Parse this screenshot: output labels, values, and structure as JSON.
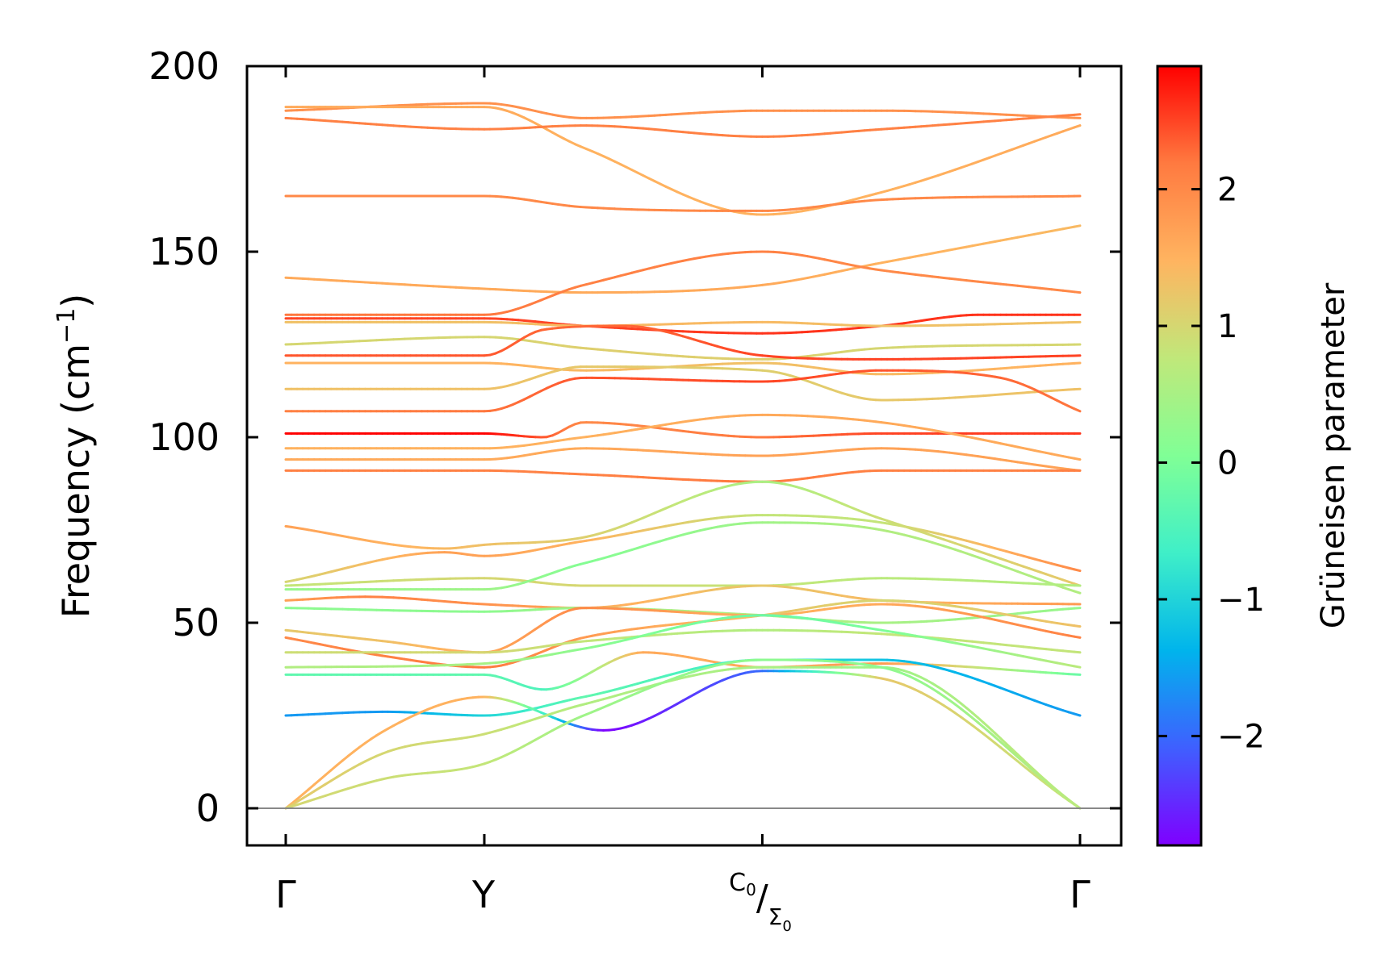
{
  "chart_data": {
    "type": "line",
    "ylabel_main": "Frequency (cm",
    "ylabel_sup": "−1",
    "ylabel_close": ")",
    "ylim": [
      -10,
      200
    ],
    "yticks": [
      0,
      50,
      100,
      150,
      200
    ],
    "ytick_labels": [
      "0",
      "50",
      "100",
      "150",
      "200"
    ],
    "xticks": [
      0,
      1,
      2.4,
      4
    ],
    "xtick_labels": {
      "gamma_start": "Γ",
      "y": "Y",
      "c0_sup": "C",
      "c0_sub": "0",
      "slash": "/",
      "sigma0": "Σ",
      "sigma0_sub": "0",
      "gamma_end": "Γ"
    },
    "colorbar": {
      "label": "Grüneisen parameter",
      "range": [
        -2.8,
        2.9
      ],
      "ticks": [
        2,
        1,
        0,
        -1,
        -2
      ],
      "tick_labels": [
        "2",
        "1",
        "0",
        "−1",
        "−2"
      ],
      "colormap": [
        "#7f00ff",
        "#3f5fff",
        "#00b4ec",
        "#3fefc8",
        "#80ff96",
        "#c0e87a",
        "#ffb460",
        "#ff7a40",
        "#ff0000"
      ]
    },
    "series": [
      {
        "name": "band-01",
        "x": [
          0,
          1,
          1.5,
          2.4,
          3.0,
          4
        ],
        "y": [
          188,
          190,
          186,
          188,
          188,
          186
        ],
        "gamma": [
          1.9,
          1.9,
          1.9,
          1.9,
          1.9,
          1.9
        ]
      },
      {
        "name": "band-02",
        "x": [
          0,
          0.5,
          1,
          1.5,
          2.4,
          3.0,
          4
        ],
        "y": [
          189,
          189,
          189,
          178,
          160,
          166,
          184
        ],
        "gamma": [
          1.6,
          1.6,
          1.6,
          1.5,
          1.5,
          1.5,
          1.6
        ]
      },
      {
        "name": "band-03",
        "x": [
          0,
          1,
          1.5,
          2.4,
          3.0,
          4
        ],
        "y": [
          186,
          183,
          184,
          181,
          183,
          187
        ],
        "gamma": [
          2.1,
          2.1,
          2.1,
          2.1,
          2.1,
          2.1
        ]
      },
      {
        "name": "band-04",
        "x": [
          0,
          1,
          1.5,
          2.4,
          3.0,
          4
        ],
        "y": [
          165,
          165,
          162,
          161,
          164,
          165
        ],
        "gamma": [
          2.0,
          2.0,
          2.0,
          2.0,
          2.0,
          2.0
        ]
      },
      {
        "name": "band-05",
        "x": [
          0,
          1,
          1.5,
          2.4,
          3.0,
          4
        ],
        "y": [
          143,
          140,
          139,
          141,
          147,
          157
        ],
        "gamma": [
          1.6,
          1.6,
          1.6,
          1.6,
          1.5,
          1.4
        ]
      },
      {
        "name": "band-06",
        "x": [
          0,
          1,
          1.5,
          2.4,
          3.0,
          4
        ],
        "y": [
          133,
          133,
          141,
          150,
          145,
          139
        ],
        "gamma": [
          2.2,
          2.2,
          2.1,
          2.1,
          2.0,
          2.0
        ]
      },
      {
        "name": "band-07",
        "x": [
          0,
          1,
          1.5,
          2.4,
          3.0,
          3.5,
          4
        ],
        "y": [
          132,
          132,
          130,
          128,
          130,
          133,
          133
        ],
        "gamma": [
          2.5,
          2.5,
          2.5,
          2.6,
          2.6,
          2.6,
          2.6
        ]
      },
      {
        "name": "band-08",
        "x": [
          0,
          1,
          1.5,
          2.4,
          3.0,
          4
        ],
        "y": [
          131,
          131,
          130,
          131,
          130,
          131
        ],
        "gamma": [
          1.3,
          1.3,
          1.4,
          1.4,
          1.3,
          1.3
        ]
      },
      {
        "name": "band-09",
        "x": [
          0,
          1,
          1.5,
          2.4,
          3.0,
          4
        ],
        "y": [
          125,
          127,
          124,
          121,
          124,
          125
        ],
        "gamma": [
          1.0,
          1.0,
          1.1,
          1.1,
          1.0,
          1.0
        ]
      },
      {
        "name": "band-10",
        "x": [
          0,
          1,
          1.3,
          1.7,
          2.4,
          3.0,
          4
        ],
        "y": [
          122,
          122,
          129,
          130,
          122,
          121,
          122
        ],
        "gamma": [
          2.4,
          2.4,
          2.3,
          2.3,
          2.5,
          2.5,
          2.5
        ]
      },
      {
        "name": "band-11",
        "x": [
          0,
          1,
          1.5,
          2.4,
          3.0,
          4
        ],
        "y": [
          120,
          120,
          118,
          120,
          117,
          120
        ],
        "gamma": [
          1.5,
          1.5,
          1.4,
          1.3,
          1.4,
          1.5
        ]
      },
      {
        "name": "band-12",
        "x": [
          0,
          1,
          1.5,
          2.4,
          3.0,
          4
        ],
        "y": [
          113,
          113,
          119,
          118,
          110,
          113
        ],
        "gamma": [
          1.3,
          1.3,
          1.2,
          1.1,
          1.2,
          1.3
        ]
      },
      {
        "name": "band-13",
        "x": [
          0,
          1,
          1.5,
          2.4,
          3.0,
          3.6,
          4
        ],
        "y": [
          107,
          107,
          116,
          115,
          118,
          116,
          107
        ],
        "gamma": [
          2.1,
          2.2,
          2.4,
          2.5,
          2.4,
          2.3,
          2.2
        ]
      },
      {
        "name": "band-14",
        "x": [
          0,
          1,
          1.3,
          1.5,
          2.4,
          3.0,
          4
        ],
        "y": [
          101,
          101,
          100,
          104,
          100,
          101,
          101
        ],
        "gamma": [
          2.9,
          2.9,
          2.4,
          2.0,
          2.2,
          2.5,
          2.6
        ]
      },
      {
        "name": "band-15",
        "x": [
          0,
          1,
          1.5,
          2.4,
          3.0,
          4
        ],
        "y": [
          97,
          97,
          100,
          106,
          104,
          94
        ],
        "gamma": [
          1.5,
          1.5,
          1.5,
          1.6,
          1.6,
          1.6
        ]
      },
      {
        "name": "band-16",
        "x": [
          0,
          1,
          1.5,
          2.4,
          3.0,
          4
        ],
        "y": [
          94,
          94,
          97,
          95,
          97,
          91
        ],
        "gamma": [
          1.6,
          1.6,
          1.6,
          1.7,
          1.7,
          1.7
        ]
      },
      {
        "name": "band-17",
        "x": [
          0,
          1,
          1.5,
          2.4,
          3.0,
          4
        ],
        "y": [
          91,
          91,
          90,
          88,
          91,
          91
        ],
        "gamma": [
          2.1,
          2.1,
          2.1,
          2.2,
          2.1,
          2.1
        ]
      },
      {
        "name": "band-18",
        "x": [
          0,
          0.8,
          1,
          1.5,
          2.4,
          3.0,
          4
        ],
        "y": [
          76,
          70,
          71,
          73,
          88,
          78,
          60
        ],
        "gamma": [
          1.7,
          1.4,
          1.3,
          1.1,
          0.5,
          0.9,
          1.2
        ]
      },
      {
        "name": "band-19",
        "x": [
          0,
          0.8,
          1,
          1.5,
          2.4,
          3.0,
          4
        ],
        "y": [
          61,
          69,
          68,
          72,
          79,
          77,
          64
        ],
        "gamma": [
          1.0,
          1.7,
          1.7,
          1.5,
          0.8,
          0.8,
          2.0
        ]
      },
      {
        "name": "band-20",
        "x": [
          0,
          1,
          1.5,
          2.4,
          3.0,
          4
        ],
        "y": [
          60,
          62,
          60,
          60,
          62,
          60
        ],
        "gamma": [
          0.8,
          1.0,
          1.0,
          0.8,
          0.7,
          0.6
        ]
      },
      {
        "name": "band-21",
        "x": [
          0,
          1,
          1.5,
          2.4,
          3.0,
          4
        ],
        "y": [
          59,
          59,
          66,
          77,
          75,
          58
        ],
        "gamma": [
          0.3,
          0.4,
          0.1,
          0.4,
          0.6,
          0.6
        ]
      },
      {
        "name": "band-22",
        "x": [
          0,
          0.4,
          1,
          1.5,
          2.4,
          3.0,
          4
        ],
        "y": [
          56,
          57,
          55,
          54,
          60,
          56,
          55
        ],
        "gamma": [
          1.7,
          2.1,
          1.9,
          1.6,
          1.2,
          1.4,
          1.8
        ]
      },
      {
        "name": "band-23",
        "x": [
          0,
          1,
          1.5,
          2.4,
          3.0,
          4
        ],
        "y": [
          54,
          53,
          54,
          52,
          50,
          54
        ],
        "gamma": [
          0.2,
          0.2,
          0.4,
          0.6,
          0.5,
          0.3
        ]
      },
      {
        "name": "band-24",
        "x": [
          0,
          0.5,
          1,
          1.5,
          2.4,
          3.0,
          4
        ],
        "y": [
          48,
          45,
          42,
          54,
          52,
          55,
          46
        ],
        "gamma": [
          1.2,
          1.3,
          1.6,
          2.0,
          1.5,
          1.6,
          2.1
        ]
      },
      {
        "name": "band-25",
        "x": [
          0,
          0.5,
          1,
          1.5,
          2.4,
          3.0,
          4
        ],
        "y": [
          46,
          41,
          38,
          46,
          52,
          56,
          49
        ],
        "gamma": [
          2.0,
          2.1,
          2.2,
          1.8,
          1.3,
          1.0,
          1.3
        ]
      },
      {
        "name": "band-26",
        "x": [
          0,
          1,
          1.5,
          2.4,
          3.0,
          4
        ],
        "y": [
          42,
          42,
          45,
          48,
          47,
          42
        ],
        "gamma": [
          0.9,
          1.0,
          0.8,
          0.6,
          0.8,
          0.8
        ]
      },
      {
        "name": "band-27",
        "x": [
          0,
          1,
          1.5,
          2.4,
          3.0,
          4
        ],
        "y": [
          38,
          39,
          43,
          52,
          48,
          38
        ],
        "gamma": [
          0.6,
          0.5,
          0.2,
          -0.2,
          0.0,
          0.7
        ]
      },
      {
        "name": "band-28",
        "x": [
          0,
          1,
          1.3,
          1.8,
          2.4,
          3.0,
          4
        ],
        "y": [
          36,
          36,
          32,
          42,
          38,
          39,
          36
        ],
        "gamma": [
          -0.3,
          -0.3,
          -0.5,
          1.6,
          1.6,
          1.8,
          -0.2
        ]
      },
      {
        "name": "band-29",
        "x": [
          0,
          0.5,
          1,
          1.5,
          2.4,
          3.0,
          4
        ],
        "y": [
          25,
          26,
          25,
          30,
          40,
          40,
          25
        ],
        "gamma": [
          -1.6,
          -1.6,
          -1.0,
          -0.3,
          -0.7,
          -1.2,
          -1.6
        ]
      },
      {
        "name": "band-30",
        "x": [
          0,
          0.5,
          1,
          1.6,
          2.4,
          3.0,
          4
        ],
        "y": [
          0,
          21,
          30,
          21,
          37,
          35,
          0
        ],
        "gamma": [
          1.5,
          1.5,
          1.5,
          -2.8,
          -2.0,
          1.2,
          0.8
        ]
      },
      {
        "name": "band-31",
        "x": [
          0,
          0.5,
          1,
          1.5,
          2.4,
          3.0,
          4
        ],
        "y": [
          0,
          15,
          20,
          28,
          38,
          38,
          0
        ],
        "gamma": [
          1.2,
          1.0,
          0.9,
          0.6,
          0.5,
          0.4,
          0.8
        ]
      },
      {
        "name": "band-32",
        "x": [
          0,
          0.5,
          1,
          1.5,
          2.4,
          3.0,
          4
        ],
        "y": [
          0,
          8,
          12,
          25,
          40,
          38,
          0
        ],
        "gamma": [
          1.0,
          0.9,
          0.8,
          0.4,
          0.2,
          0.2,
          0.7
        ]
      }
    ]
  }
}
